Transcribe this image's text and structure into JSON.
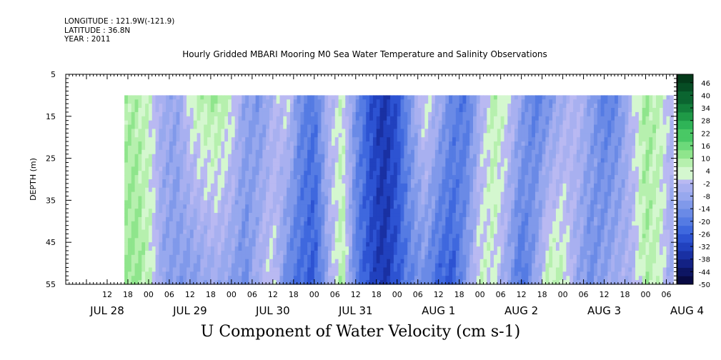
{
  "header": {
    "longitude": "LONGITUDE : 121.9W(-121.9)",
    "latitude": "LATITUDE : 36.8N",
    "year": "YEAR : 2011",
    "title": "Hourly Gridded MBARI Mooring M0 Sea Water Temperature and Salinity Observations"
  },
  "chart_data": {
    "type": "heatmap",
    "title": "Hourly Gridded MBARI Mooring M0 Sea Water Temperature and Salinity Observations",
    "xlabel": "U Component of Water Velocity (cm s-1)",
    "ylabel": "DEPTH (m)",
    "x_axis": {
      "unit": "hour",
      "range_hours": [
        0,
        177
      ],
      "hour_ticks": [
        "12",
        "18",
        "00",
        "06",
        "12",
        "18",
        "00",
        "06",
        "12",
        "18",
        "00",
        "06",
        "12",
        "18",
        "00",
        "06",
        "12",
        "18",
        "00",
        "06",
        "12",
        "18",
        "00",
        "06",
        "12",
        "18",
        "00",
        "06"
      ],
      "date_labels": [
        "JUL 28",
        "JUL 29",
        "JUL 30",
        "JUL 31",
        "AUG  1",
        "AUG  2",
        "AUG  3",
        "AUG  4"
      ],
      "data_start_hour": 17,
      "data_end_hour": 176
    },
    "y_axis": {
      "range": [
        5,
        55
      ],
      "inverted": true,
      "tick_labels": [
        "5",
        "15",
        "25",
        "35",
        "45",
        "55"
      ],
      "data_top_depth": 10,
      "data_bottom_depth": 55
    },
    "colorbar": {
      "range": [
        -50,
        50
      ],
      "labels": [
        "46",
        "40",
        "34",
        "28",
        "22",
        "16",
        "10",
        "4",
        "-2",
        "-8",
        "-14",
        "-20",
        "-26",
        "-32",
        "-38",
        "-44",
        "-50"
      ]
    },
    "u_profile": {
      "hours": [
        17,
        20,
        24,
        28,
        32,
        36,
        40,
        44,
        48,
        52,
        56,
        60,
        64,
        68,
        72,
        76,
        80,
        84,
        88,
        92,
        96,
        100,
        104,
        108,
        112,
        116,
        120,
        124,
        128,
        132,
        136,
        140,
        144,
        148,
        152,
        156,
        160,
        164,
        168,
        172,
        176
      ],
      "surface": [
        8,
        8,
        4,
        -6,
        -10,
        4,
        8,
        10,
        4,
        -10,
        -14,
        -4,
        2,
        -16,
        -22,
        -4,
        4,
        -14,
        -28,
        -36,
        -30,
        -12,
        4,
        -6,
        -18,
        -22,
        -6,
        8,
        2,
        -10,
        -20,
        -14,
        -6,
        -2,
        -10,
        -20,
        -16,
        -2,
        10,
        6,
        -4
      ],
      "deep": [
        10,
        12,
        6,
        -10,
        -12,
        -14,
        -10,
        -8,
        -12,
        -16,
        -4,
        2,
        -18,
        -24,
        -28,
        -8,
        10,
        -20,
        -30,
        -36,
        -28,
        -18,
        -16,
        -26,
        -28,
        -12,
        4,
        2,
        -10,
        -24,
        -10,
        8,
        6,
        -8,
        -16,
        -10,
        -6,
        -4,
        8,
        4,
        -10
      ]
    }
  }
}
